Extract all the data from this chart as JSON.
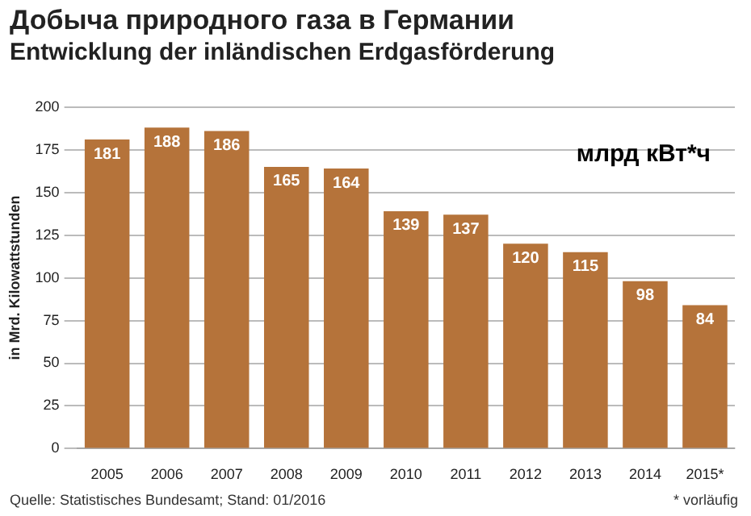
{
  "chart_data": {
    "type": "bar",
    "title": "Добыча природного газа в Германии",
    "subtitle": "Entwicklung der inländischen Erdgasförderung",
    "categories": [
      "2005",
      "2006",
      "2007",
      "2008",
      "2009",
      "2010",
      "2011",
      "2012",
      "2013",
      "2014",
      "2015*"
    ],
    "values": [
      181,
      188,
      186,
      165,
      164,
      139,
      137,
      120,
      115,
      98,
      84
    ],
    "color": "#b5733a",
    "ylabel": "in Mrd. Kilowattstunden",
    "ylim": [
      0,
      200
    ],
    "yticks": [
      0,
      25,
      50,
      75,
      100,
      125,
      150,
      175,
      200
    ],
    "grid": "y",
    "data_labels": true,
    "legend": false,
    "annotations": [
      "млрд кВт*ч",
      "Quelle: Statistisches Bundesamt; Stand: 01/2016",
      "* vorläufig"
    ]
  }
}
